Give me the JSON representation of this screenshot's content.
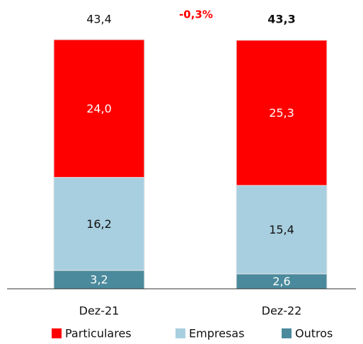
{
  "chart_data": {
    "type": "stacked_bar",
    "categories": [
      "Dez-21",
      "Dez-22"
    ],
    "series": [
      {
        "name": "Particulares",
        "color": "#ff0000",
        "values": [
          24.0,
          25.3
        ],
        "value_labels": [
          "24,0",
          "25,3"
        ]
      },
      {
        "name": "Empresas",
        "color": "#a8cfe0",
        "values": [
          16.2,
          15.4
        ],
        "value_labels": [
          "16,2",
          "15,4"
        ]
      },
      {
        "name": "Outros",
        "color": "#4a8a9c",
        "values": [
          3.2,
          2.6
        ],
        "value_labels": [
          "3,2",
          "2,6"
        ]
      }
    ],
    "totals": [
      43.4,
      43.3
    ],
    "total_labels": [
      "43,4",
      "43,3"
    ],
    "annotation": "-0,3%",
    "legend": "bottom"
  }
}
